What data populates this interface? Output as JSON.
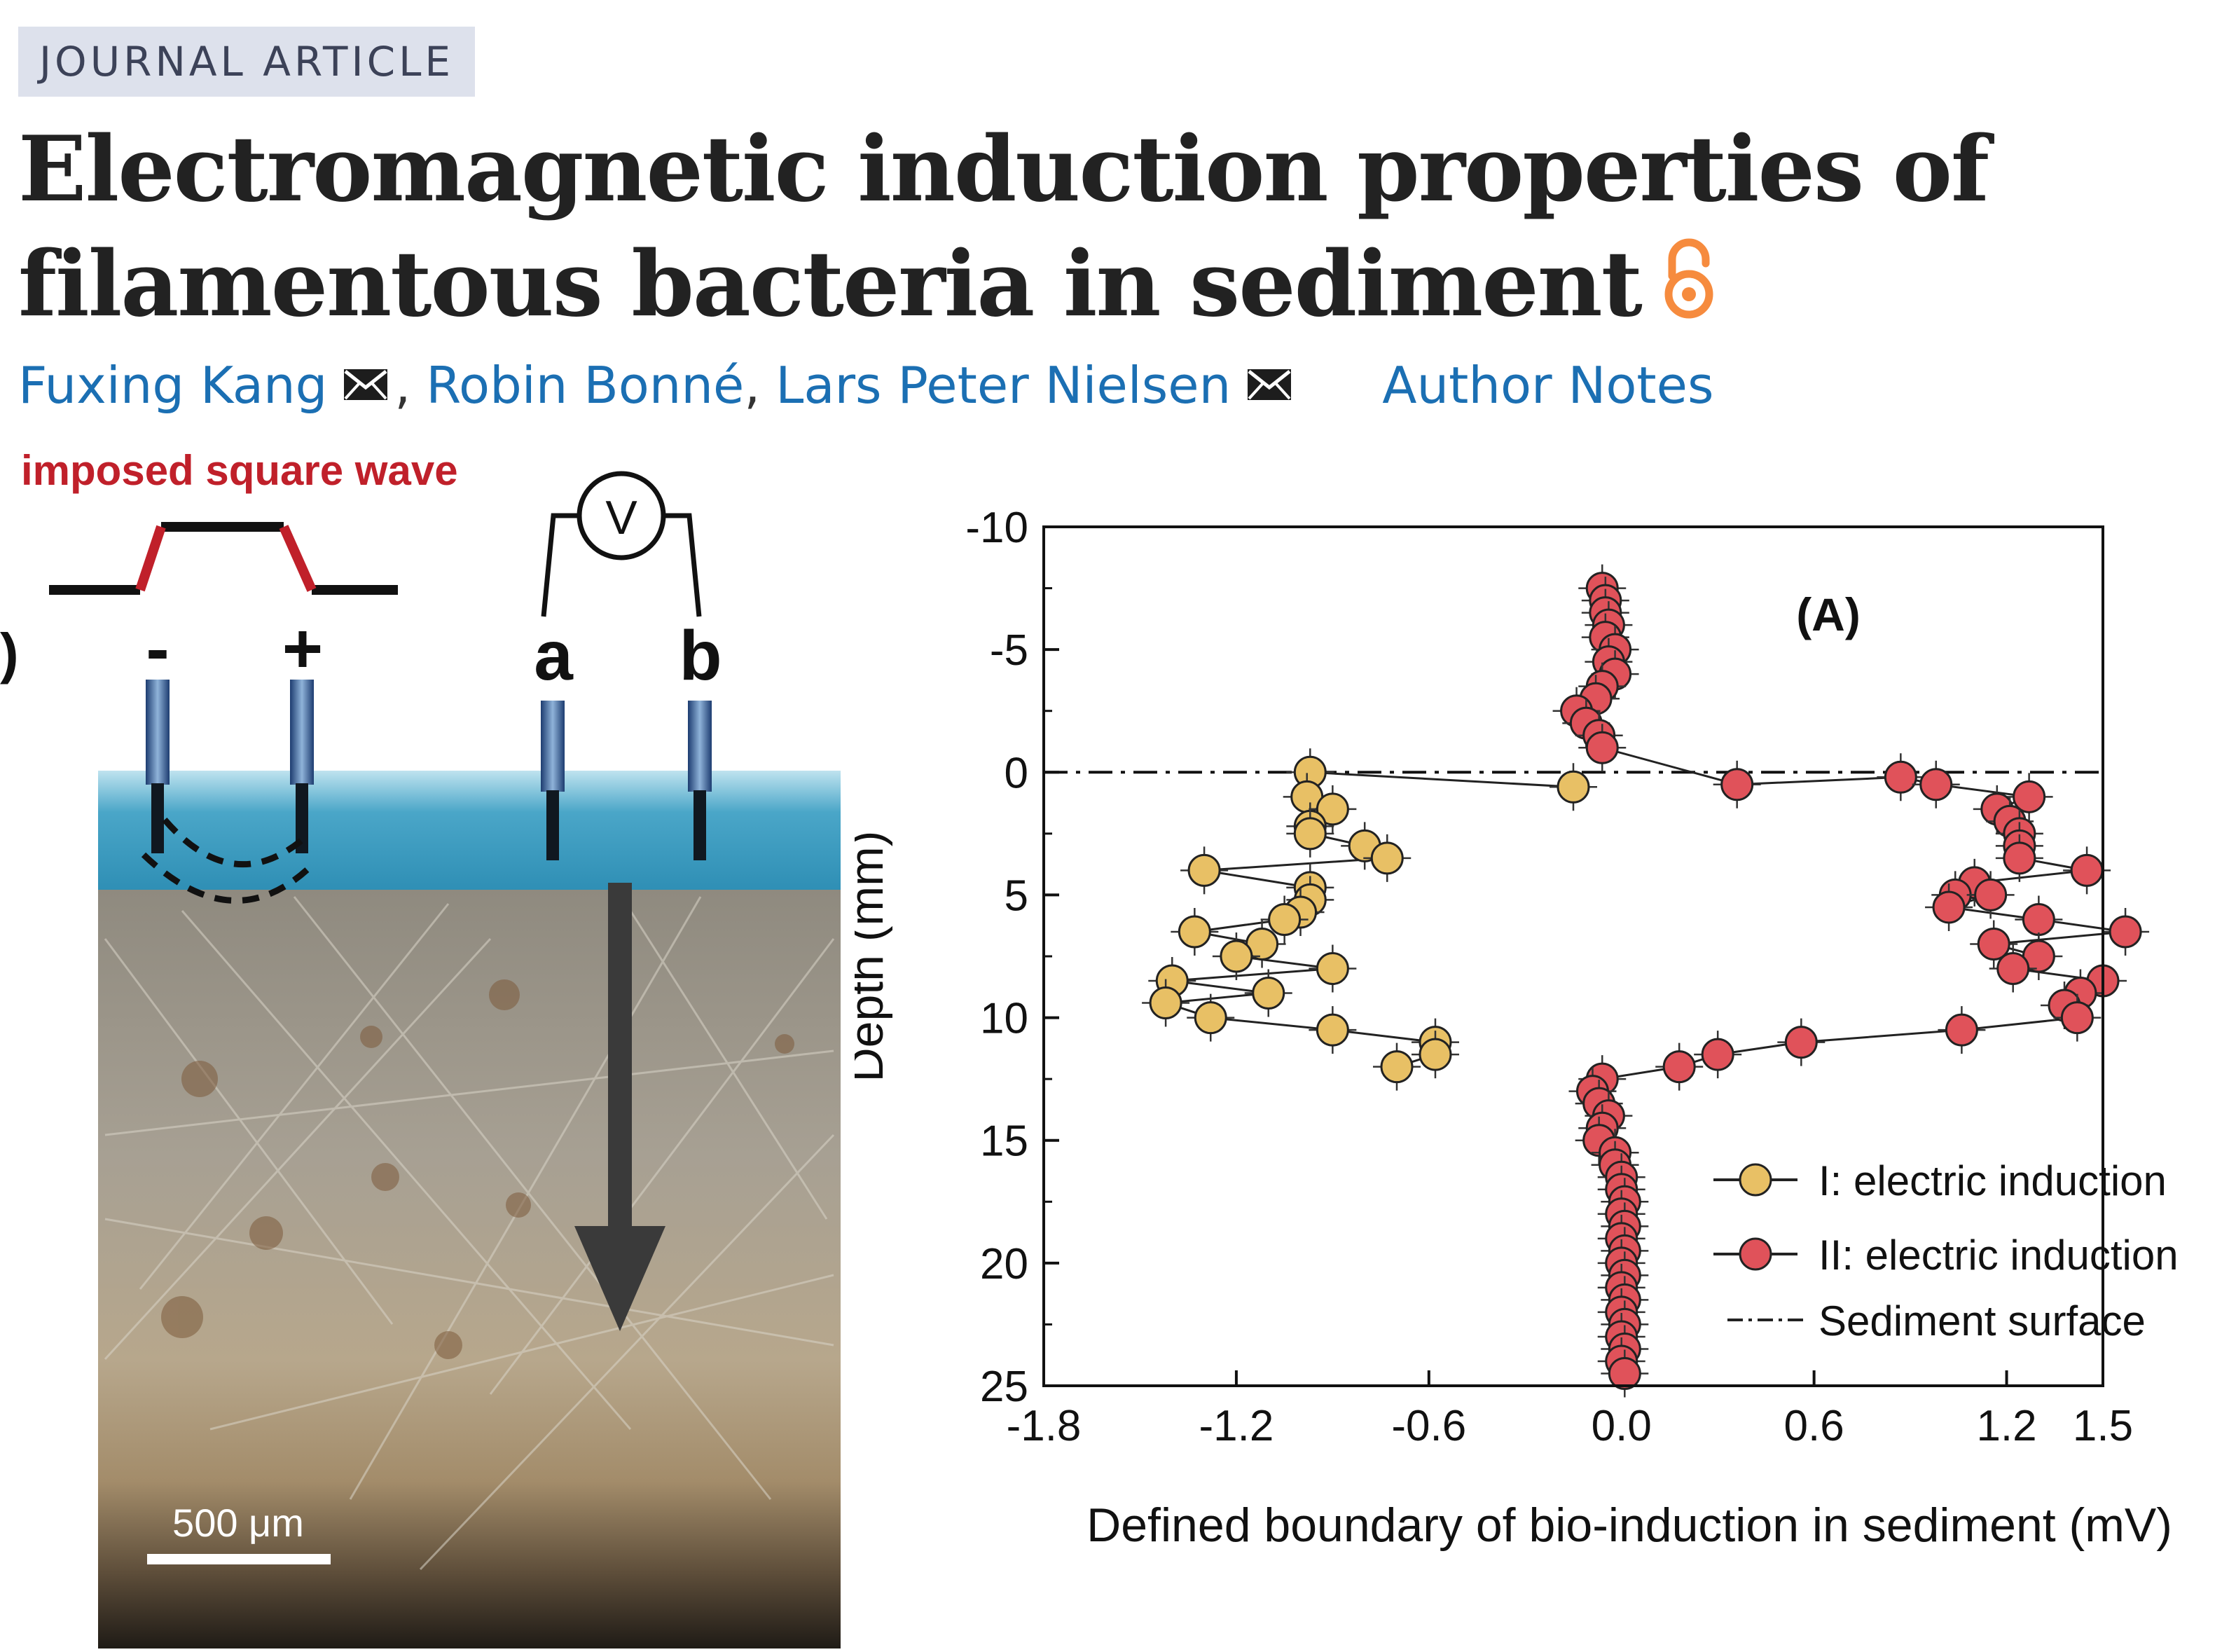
{
  "header": {
    "badge": "JOURNAL ARTICLE",
    "title": "Electromagnetic induction properties of filamentous bacteria in sediment",
    "open_access_icon": "open-access-lock-icon"
  },
  "authors": {
    "list": [
      {
        "name": "Fuxing Kang",
        "has_email": true
      },
      {
        "name": "Robin Bonné",
        "has_email": false
      },
      {
        "name": "Lars Peter Nielsen",
        "has_email": true
      }
    ],
    "separator": ",",
    "notes_link": "Author Notes",
    "email_icon": "envelope-icon"
  },
  "figure": {
    "panel_left": {
      "wave_label": "imposed square wave",
      "minus": "-",
      "plus": "+",
      "voltmeter": "V",
      "electrode_a": "a",
      "electrode_b": "b",
      "panel_marker": ")",
      "scale_bar": "500 μm",
      "colors": {
        "wave": "#c0202a",
        "water": "#4aa6c8",
        "sediment": "#a99a83"
      }
    },
    "chart_data": {
      "type": "scatter",
      "panel_label": "(A)",
      "xlabel": "Defined boundary of bio-induction in sediment (mV)",
      "ylabel": "Depth (mm)",
      "xlim": [
        -1.8,
        1.5
      ],
      "ylim": [
        25,
        -10
      ],
      "y_inverted": true,
      "x_ticks": [
        "-1.8",
        "-1.2",
        "-0.6",
        "0.0",
        "0.6",
        "1.2",
        "1.5"
      ],
      "y_ticks": [
        "-10",
        "-5",
        "0",
        "5",
        "10",
        "15",
        "20",
        "25"
      ],
      "grid": false,
      "legend_position": "lower-right",
      "series": [
        {
          "name": "I: electric induction",
          "color": "#e8c065",
          "points": [
            [
              -0.15,
              0.6
            ],
            [
              -0.97,
              0.0
            ],
            [
              -0.98,
              1.0
            ],
            [
              -0.9,
              1.5
            ],
            [
              -0.97,
              2.2
            ],
            [
              -0.97,
              2.5
            ],
            [
              -0.8,
              3.0
            ],
            [
              -0.73,
              3.5
            ],
            [
              -1.3,
              4.0
            ],
            [
              -0.97,
              4.7
            ],
            [
              -0.97,
              5.2
            ],
            [
              -1.0,
              5.7
            ],
            [
              -1.05,
              6.0
            ],
            [
              -1.33,
              6.5
            ],
            [
              -1.12,
              7.0
            ],
            [
              -1.2,
              7.5
            ],
            [
              -0.9,
              8.0
            ],
            [
              -1.4,
              8.5
            ],
            [
              -1.1,
              9.0
            ],
            [
              -1.42,
              9.4
            ],
            [
              -1.28,
              10.0
            ],
            [
              -0.9,
              10.5
            ],
            [
              -0.58,
              11.0
            ],
            [
              -0.58,
              11.5
            ],
            [
              -0.7,
              12.0
            ]
          ]
        },
        {
          "name": "II: electric induction",
          "color": "#e0525a",
          "points": [
            [
              -0.06,
              -7.5
            ],
            [
              -0.05,
              -7.0
            ],
            [
              -0.05,
              -6.5
            ],
            [
              -0.04,
              -6.0
            ],
            [
              -0.05,
              -5.5
            ],
            [
              -0.02,
              -5.0
            ],
            [
              -0.04,
              -4.5
            ],
            [
              -0.02,
              -4.0
            ],
            [
              -0.06,
              -3.5
            ],
            [
              -0.08,
              -3.0
            ],
            [
              -0.14,
              -2.5
            ],
            [
              -0.11,
              -2.0
            ],
            [
              -0.07,
              -1.5
            ],
            [
              -0.06,
              -1.0
            ],
            [
              0.36,
              0.5
            ],
            [
              0.87,
              0.2
            ],
            [
              0.98,
              0.5
            ],
            [
              1.27,
              1.0
            ],
            [
              1.17,
              1.5
            ],
            [
              1.21,
              2.0
            ],
            [
              1.24,
              2.5
            ],
            [
              1.24,
              3.0
            ],
            [
              1.24,
              3.5
            ],
            [
              1.45,
              4.0
            ],
            [
              1.1,
              4.5
            ],
            [
              1.04,
              5.0
            ],
            [
              1.15,
              5.0
            ],
            [
              1.02,
              5.5
            ],
            [
              1.3,
              6.0
            ],
            [
              1.57,
              6.5
            ],
            [
              1.16,
              7.0
            ],
            [
              1.3,
              7.5
            ],
            [
              1.22,
              8.0
            ],
            [
              1.5,
              8.5
            ],
            [
              1.43,
              9.0
            ],
            [
              1.38,
              9.5
            ],
            [
              1.42,
              10.0
            ],
            [
              1.06,
              10.5
            ],
            [
              0.56,
              11.0
            ],
            [
              0.3,
              11.5
            ],
            [
              0.18,
              12.0
            ],
            [
              -0.06,
              12.5
            ],
            [
              -0.09,
              13.0
            ],
            [
              -0.07,
              13.5
            ],
            [
              -0.04,
              14.0
            ],
            [
              -0.06,
              14.5
            ],
            [
              -0.07,
              15.0
            ],
            [
              -0.02,
              15.5
            ],
            [
              -0.02,
              16.0
            ],
            [
              0.0,
              16.5
            ],
            [
              0.0,
              17.0
            ],
            [
              0.01,
              17.5
            ],
            [
              0.0,
              18.0
            ],
            [
              0.01,
              18.5
            ],
            [
              0.0,
              19.0
            ],
            [
              0.01,
              19.5
            ],
            [
              0.0,
              20.0
            ],
            [
              0.01,
              20.5
            ],
            [
              0.0,
              21.0
            ],
            [
              0.01,
              21.5
            ],
            [
              0.0,
              22.0
            ],
            [
              0.01,
              22.5
            ],
            [
              0.0,
              23.0
            ],
            [
              0.01,
              23.5
            ],
            [
              0.0,
              24.0
            ],
            [
              0.01,
              24.5
            ]
          ]
        }
      ],
      "reference_lines": [
        {
          "name": "Sediment surface",
          "y": 0,
          "style": "dash-dot"
        }
      ]
    }
  }
}
